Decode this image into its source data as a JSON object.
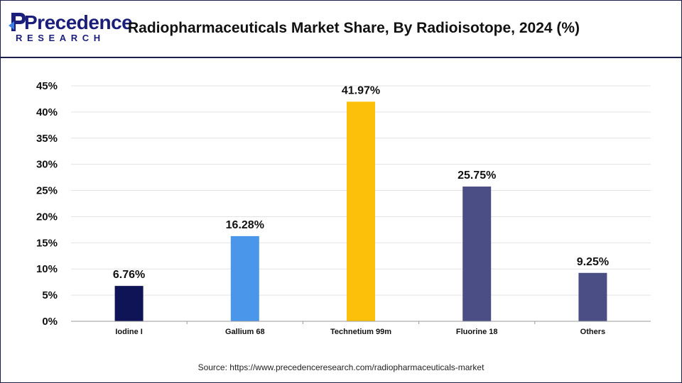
{
  "brand": {
    "name_main": "Precedence",
    "name_sub": "RESEARCH",
    "color": "#1b1f7a"
  },
  "title": "Radiopharmaceuticals Market Share, By Radioisotope, 2024 (%)",
  "source": "Source: https://www.precedenceresearch.com/radiopharmaceuticals-market",
  "chart_data": {
    "type": "bar",
    "title": "Radiopharmaceuticals Market Share, By Radioisotope, 2024 (%)",
    "xlabel": "",
    "ylabel": "",
    "categories": [
      "Iodine I",
      "Gallium 68",
      "Technetium 99m",
      "Fluorine 18",
      "Others"
    ],
    "values": [
      6.76,
      16.28,
      41.97,
      25.75,
      9.25
    ],
    "value_labels": [
      "6.76%",
      "16.28%",
      "41.97%",
      "25.75%",
      "9.25%"
    ],
    "bar_colors": [
      "#0f1456",
      "#4a96ea",
      "#fcc00a",
      "#4b4e85",
      "#4b4e85"
    ],
    "ylim": [
      0,
      45
    ],
    "yticks": [
      0,
      5,
      10,
      15,
      20,
      25,
      30,
      35,
      40,
      45
    ],
    "ytick_labels": [
      "0%",
      "5%",
      "10%",
      "15%",
      "20%",
      "25%",
      "30%",
      "35%",
      "40%",
      "45%"
    ],
    "grid": true,
    "legend": "none"
  }
}
